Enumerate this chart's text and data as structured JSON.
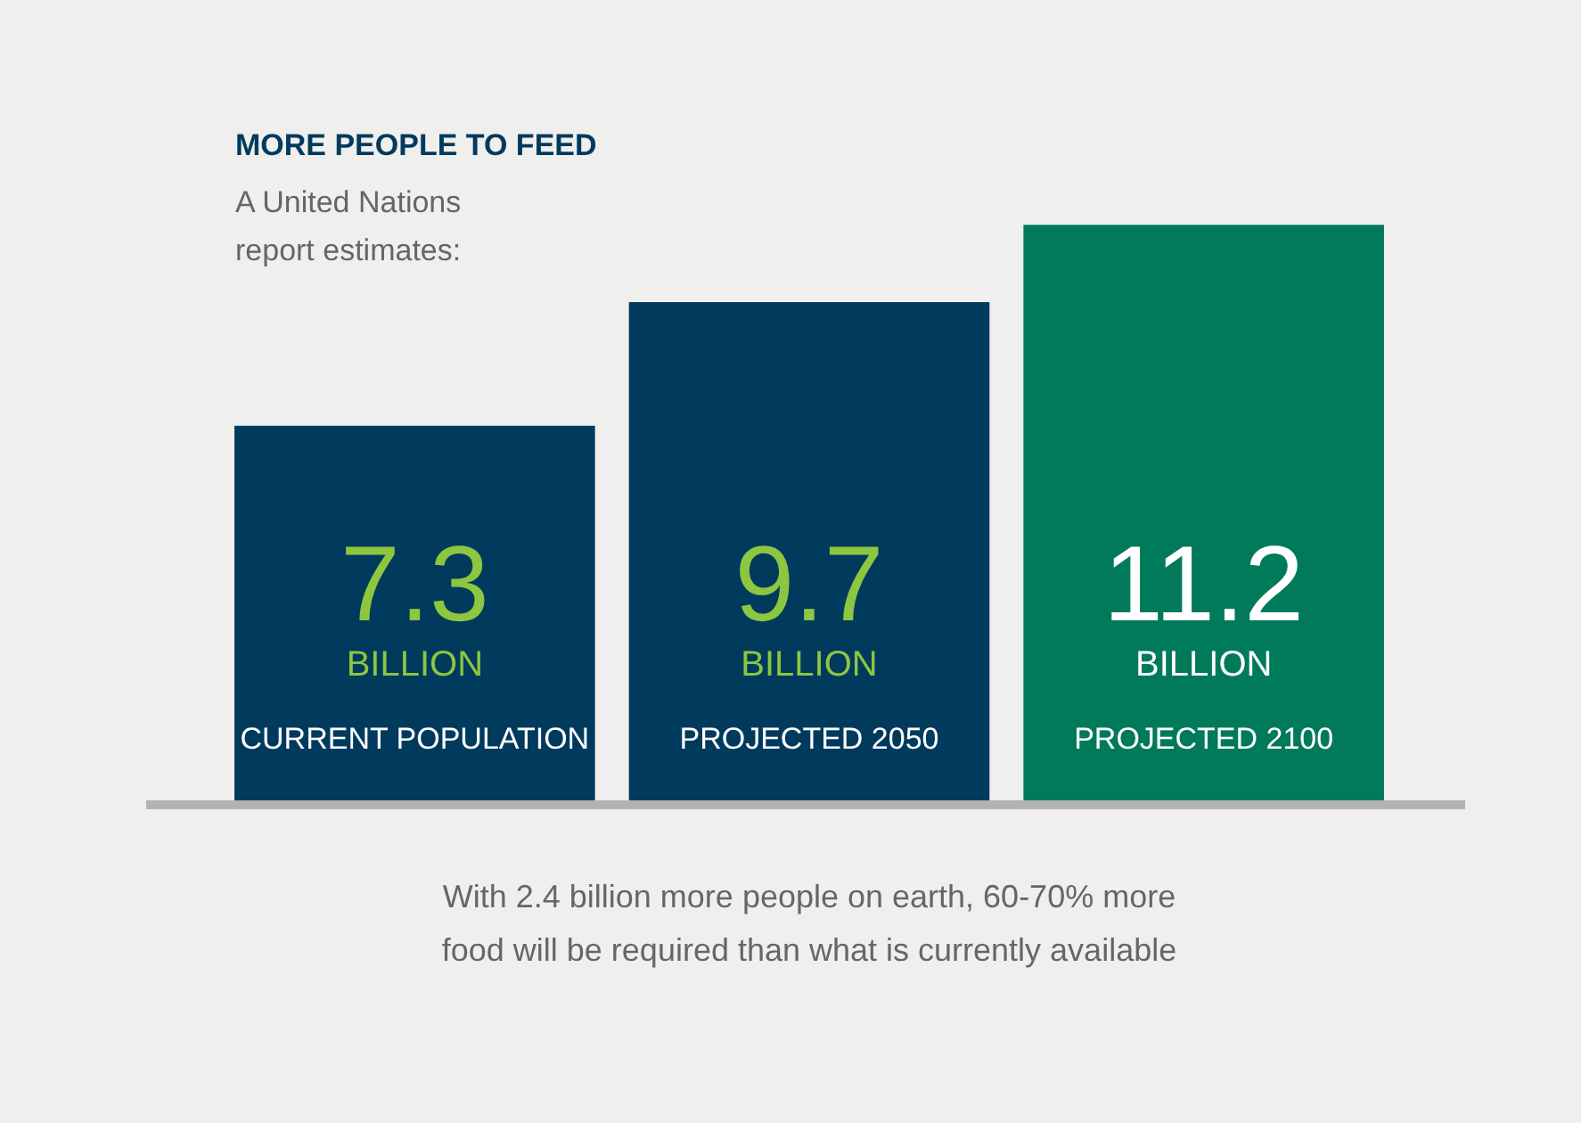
{
  "chart_data": {
    "type": "bar",
    "title": "MORE PEOPLE TO FEED",
    "subtitle": "A United Nations report estimates:",
    "ylabel": "BILLION",
    "categories": [
      "CURRENT POPULATION",
      "PROJECTED 2050",
      "PROJECTED 2100"
    ],
    "values": [
      7.3,
      9.7,
      11.2
    ],
    "colors": [
      "#003a5d",
      "#003a5d",
      "#007a5a"
    ],
    "data_labels": true,
    "legend": false,
    "annotations": [
      "With 2.4 billion more people on earth, 60-70% more food will be required than what is currently available"
    ]
  }
}
